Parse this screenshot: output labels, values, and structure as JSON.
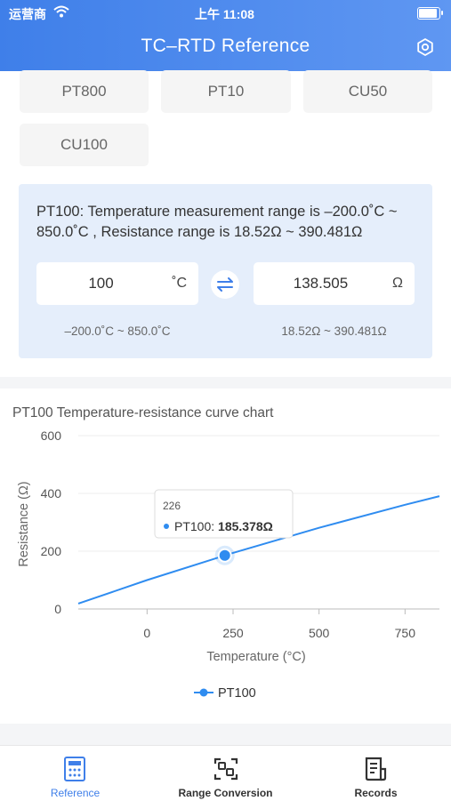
{
  "status_bar": {
    "carrier": "运营商",
    "time": "上午 11:08"
  },
  "header": {
    "title": "TC–RTD Reference"
  },
  "sensor_chips": [
    "PT800",
    "PT10",
    "CU50",
    "CU100"
  ],
  "info": {
    "description": "PT100: Temperature measurement range is –200.0˚C ~ 850.0˚C , Resistance range is 18.52Ω ~ 390.481Ω",
    "temperature_value": "100",
    "temperature_unit": "˚C",
    "resistance_value": "138.505",
    "resistance_unit": "Ω",
    "temperature_range": "–200.0˚C ~ 850.0˚C",
    "resistance_range": "18.52Ω ~ 390.481Ω"
  },
  "chart_title": "PT100 Temperature-resistance curve chart",
  "chart_data": {
    "type": "line",
    "xlabel": "Temperature (°C)",
    "ylabel": "Resistance (Ω)",
    "xlim": [
      -200,
      850
    ],
    "ylim": [
      0,
      600
    ],
    "x_ticks": [
      "0",
      "250",
      "500",
      "750"
    ],
    "y_ticks": [
      "0",
      "200",
      "400",
      "600"
    ],
    "series": [
      {
        "name": "PT100",
        "color": "#2f8cf0",
        "x": [
          -200,
          0,
          250,
          500,
          750,
          850
        ],
        "y": [
          18.52,
          100,
          194.1,
          280.98,
          360.64,
          390.481
        ]
      }
    ],
    "tooltip": {
      "x_label": "226",
      "series": "PT100",
      "value": "185.378Ω",
      "x": 226,
      "y": 185.378
    },
    "legend": "bottom-center",
    "grid": true
  },
  "nav": {
    "items": [
      {
        "label": "Reference",
        "active": true,
        "icon": "calculator-icon"
      },
      {
        "label": "Range Conversion",
        "active": false,
        "icon": "scan-convert-icon"
      },
      {
        "label": "Records",
        "active": false,
        "icon": "document-list-icon"
      }
    ],
    "active_color": "#3f7fe9"
  }
}
